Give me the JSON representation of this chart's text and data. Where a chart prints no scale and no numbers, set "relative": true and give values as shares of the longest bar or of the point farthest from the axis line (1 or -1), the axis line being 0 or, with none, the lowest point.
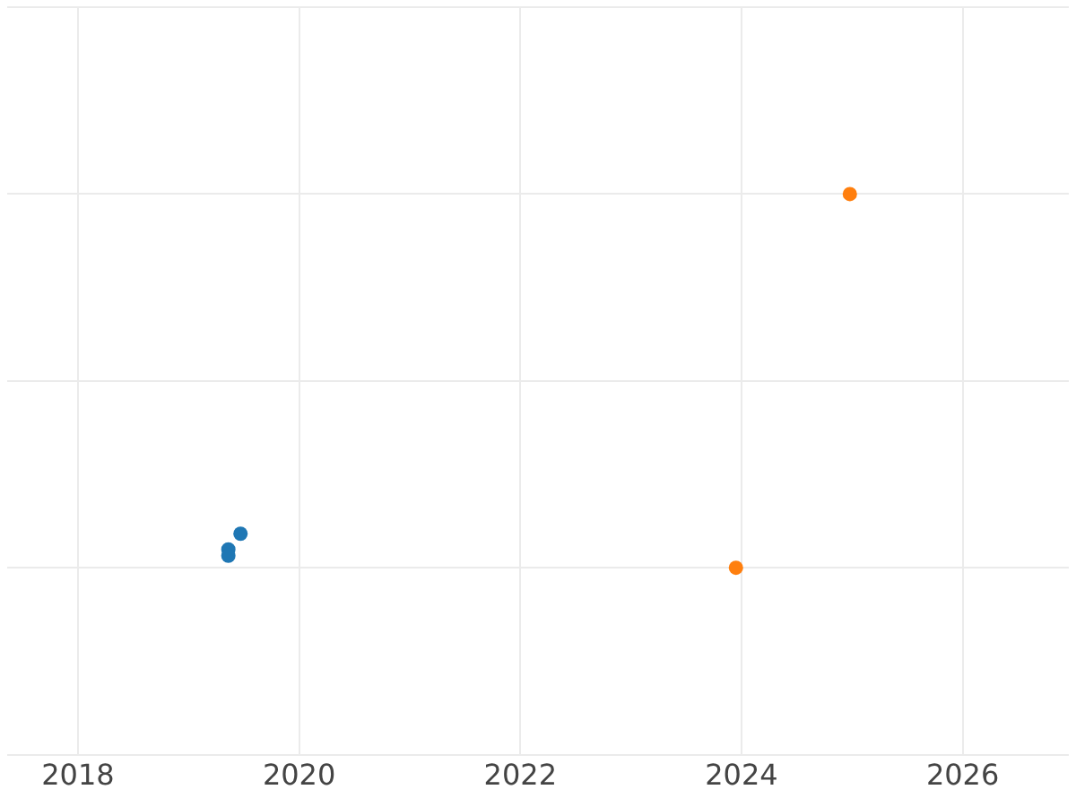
{
  "chart_data": {
    "type": "scatter",
    "relative": true,
    "series": [
      {
        "color": "#1f77b4",
        "x": [
          2019.36,
          2019.36,
          2019.47
        ],
        "values": [
          0.049,
          0.032,
          0.091
        ]
      },
      {
        "color": "#ff7f0e",
        "x": [
          2023.95,
          2024.98
        ],
        "values": [
          0,
          1
        ]
      }
    ],
    "xlim": [
      2017.36,
      2026.96
    ],
    "xticks": [
      2018,
      2020,
      2022,
      2024,
      2026
    ],
    "grid": true,
    "marker": "circle",
    "legend": false
  }
}
